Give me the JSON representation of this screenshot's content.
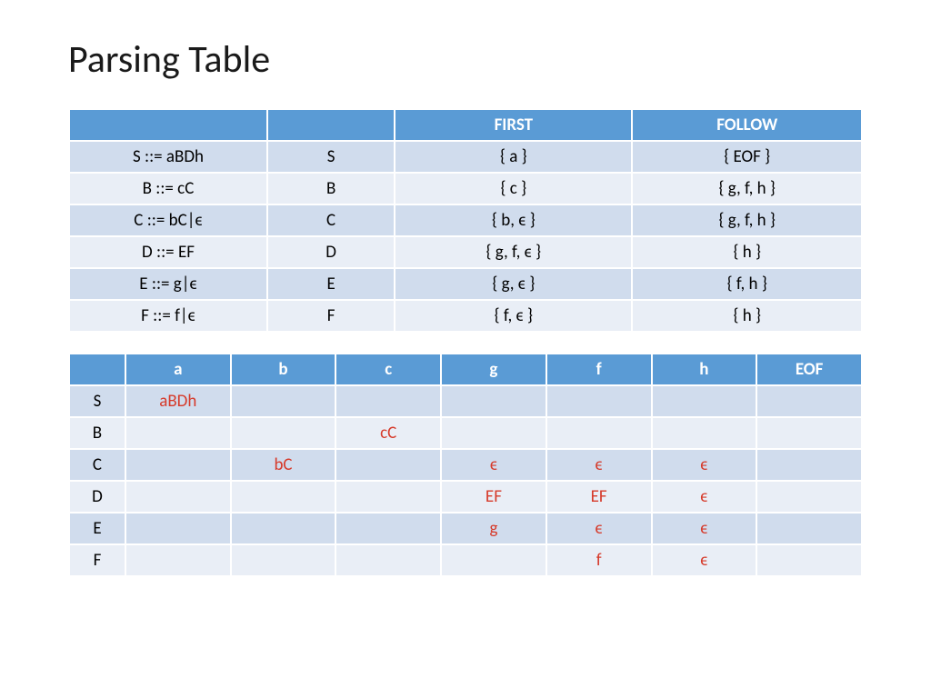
{
  "title": "Parsing Table",
  "colors": {
    "header_bg": "#5a9bd5",
    "header_text": "#ffffff",
    "row_alt_a": "#d0dced",
    "row_alt_b": "#e9eef6",
    "cell_text": "#1a1a1a",
    "highlight_text": "#d63a2a",
    "background": "#ffffff"
  },
  "table1": {
    "columns": [
      "",
      "",
      "FIRST",
      "FOLLOW"
    ],
    "rows": [
      [
        "S ::= aBDh",
        "S",
        "{ a }",
        "{ EOF }"
      ],
      [
        "B ::= cC",
        "B",
        "{ c }",
        "{ g, f, h }"
      ],
      [
        "C ::= bC|ϵ",
        "C",
        "{ b, ϵ }",
        "{ g, f, h }"
      ],
      [
        "D ::= EF",
        "D",
        "{ g, f, ϵ }",
        "{ h }"
      ],
      [
        "E ::= g|ϵ",
        "E",
        "{ g, ϵ }",
        "{ f, h }"
      ],
      [
        "F ::= f|ϵ",
        "F",
        "{ f, ϵ }",
        "{ h }"
      ]
    ]
  },
  "table2": {
    "columns": [
      "",
      "a",
      "b",
      "c",
      "g",
      "f",
      "h",
      "EOF"
    ],
    "row_headers": [
      "S",
      "B",
      "C",
      "D",
      "E",
      "F"
    ],
    "cells": [
      [
        "aBDh",
        "",
        "",
        "",
        "",
        "",
        ""
      ],
      [
        "",
        "",
        "cC",
        "",
        "",
        "",
        ""
      ],
      [
        "",
        "bC",
        "",
        "ϵ",
        "ϵ",
        "ϵ",
        ""
      ],
      [
        "",
        "",
        "",
        "EF",
        "EF",
        "ϵ",
        ""
      ],
      [
        "",
        "",
        "",
        "g",
        "ϵ",
        "ϵ",
        ""
      ],
      [
        "",
        "",
        "",
        "",
        "f",
        "ϵ",
        ""
      ]
    ]
  }
}
